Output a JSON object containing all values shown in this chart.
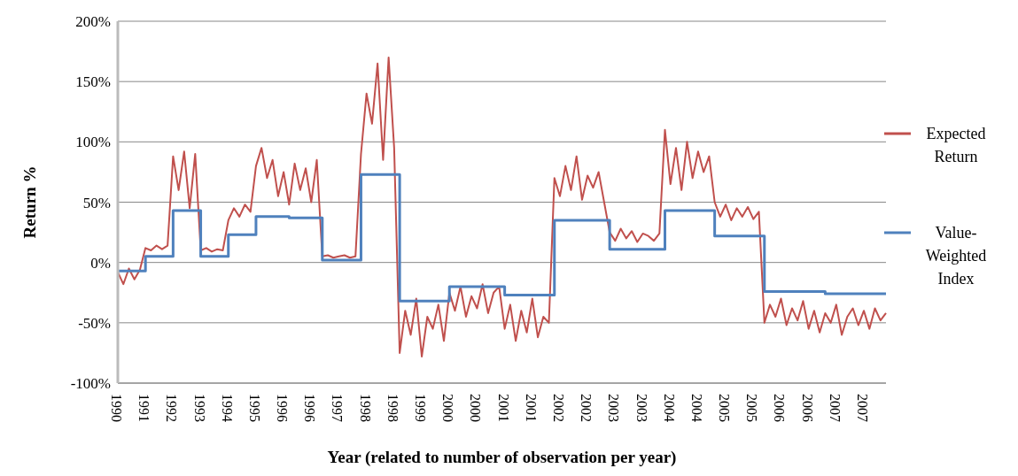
{
  "chart_data": {
    "type": "line",
    "xlabel": "Year (related to number of observation per year)",
    "ylabel": "Return %",
    "categories": [
      "1990",
      null,
      null,
      null,
      null,
      "1991",
      null,
      null,
      null,
      null,
      "1992",
      null,
      null,
      null,
      null,
      "1993",
      null,
      null,
      null,
      null,
      "1994",
      null,
      null,
      null,
      null,
      "1995",
      null,
      null,
      null,
      null,
      "1996",
      null,
      null,
      null,
      null,
      "1996",
      null,
      null,
      null,
      null,
      "1997",
      null,
      null,
      null,
      null,
      "1998",
      null,
      null,
      null,
      null,
      "1998",
      null,
      null,
      null,
      null,
      "1999",
      null,
      null,
      null,
      null,
      "2000",
      null,
      null,
      null,
      null,
      "2000",
      null,
      null,
      null,
      null,
      "2001",
      null,
      null,
      null,
      null,
      "2001",
      null,
      null,
      null,
      null,
      "2002",
      null,
      null,
      null,
      null,
      "2002",
      null,
      null,
      null,
      null,
      "2003",
      null,
      null,
      null,
      null,
      "2003",
      null,
      null,
      null,
      null,
      "2004",
      null,
      null,
      null,
      null,
      "2004",
      null,
      null,
      null,
      null,
      "2005",
      null,
      null,
      null,
      null,
      "2005",
      null,
      null,
      null,
      null,
      "2006",
      null,
      null,
      null,
      null,
      "2006",
      null,
      null,
      null,
      null,
      "2007",
      null,
      null,
      null,
      null,
      "2007",
      null,
      null,
      null,
      null
    ],
    "ylim": [
      -100,
      200
    ],
    "yticks": [
      {
        "value": -100,
        "label": "-100%"
      },
      {
        "value": -50,
        "label": "-50%"
      },
      {
        "value": 0,
        "label": "0%"
      },
      {
        "value": 50,
        "label": "50%"
      },
      {
        "value": 100,
        "label": "100%"
      },
      {
        "value": 150,
        "label": "150%"
      },
      {
        "value": 200,
        "label": "200%"
      }
    ],
    "grid": "y",
    "legend": "right",
    "series": [
      {
        "name": "Expected Return",
        "color": "#c0504d",
        "values": [
          -8,
          -18,
          -5,
          -14,
          -6,
          12,
          10,
          14,
          11,
          14,
          88,
          60,
          92,
          45,
          90,
          10,
          12,
          9,
          11,
          10,
          35,
          45,
          38,
          48,
          42,
          80,
          95,
          70,
          85,
          55,
          75,
          48,
          82,
          60,
          78,
          50,
          85,
          5,
          6,
          4,
          5,
          6,
          4,
          5,
          90,
          140,
          115,
          165,
          85,
          170,
          95,
          -75,
          -40,
          -60,
          -30,
          -78,
          -45,
          -55,
          -35,
          -65,
          -25,
          -40,
          -20,
          -45,
          -28,
          -38,
          -18,
          -42,
          -25,
          -20,
          -55,
          -35,
          -65,
          -40,
          -58,
          -30,
          -62,
          -45,
          -50,
          70,
          55,
          80,
          60,
          88,
          52,
          72,
          62,
          75,
          50,
          25,
          18,
          28,
          20,
          26,
          17,
          24,
          22,
          18,
          24,
          110,
          65,
          95,
          60,
          100,
          70,
          92,
          75,
          88,
          50,
          38,
          48,
          35,
          45,
          38,
          46,
          36,
          42,
          -50,
          -35,
          -45,
          -30,
          -52,
          -38,
          -48,
          -32,
          -55,
          -40,
          -58,
          -42,
          -50,
          -35,
          -60,
          -45,
          -38,
          -52,
          -40,
          -55,
          -38,
          -48,
          -42
        ]
      },
      {
        "name": "Value-Weighted Index",
        "type": "step",
        "color": "#4f81bd",
        "values": [
          -7,
          -7,
          -7,
          -7,
          -7,
          5,
          5,
          5,
          5,
          5,
          43,
          43,
          43,
          43,
          43,
          5,
          5,
          5,
          5,
          5,
          23,
          23,
          23,
          23,
          23,
          38,
          38,
          38,
          38,
          38,
          38,
          37,
          37,
          37,
          37,
          37,
          37,
          2,
          2,
          2,
          2,
          2,
          2,
          2,
          73,
          73,
          73,
          73,
          73,
          73,
          73,
          -32,
          -32,
          -32,
          -32,
          -32,
          -32,
          -32,
          -32,
          -32,
          -20,
          -20,
          -20,
          -20,
          -20,
          -20,
          -20,
          -20,
          -20,
          -20,
          -27,
          -27,
          -27,
          -27,
          -27,
          -27,
          -27,
          -27,
          -27,
          35,
          35,
          35,
          35,
          35,
          35,
          35,
          35,
          35,
          35,
          11,
          11,
          11,
          11,
          11,
          11,
          11,
          11,
          11,
          11,
          43,
          43,
          43,
          43,
          43,
          43,
          43,
          43,
          43,
          22,
          22,
          22,
          22,
          22,
          22,
          22,
          22,
          22,
          -24,
          -24,
          -24,
          -24,
          -24,
          -24,
          -24,
          -24,
          -24,
          -24,
          -24,
          -26,
          -26,
          -26,
          -26,
          -26,
          -26,
          -26,
          -26,
          -26,
          -26,
          -26,
          -26
        ]
      }
    ]
  }
}
